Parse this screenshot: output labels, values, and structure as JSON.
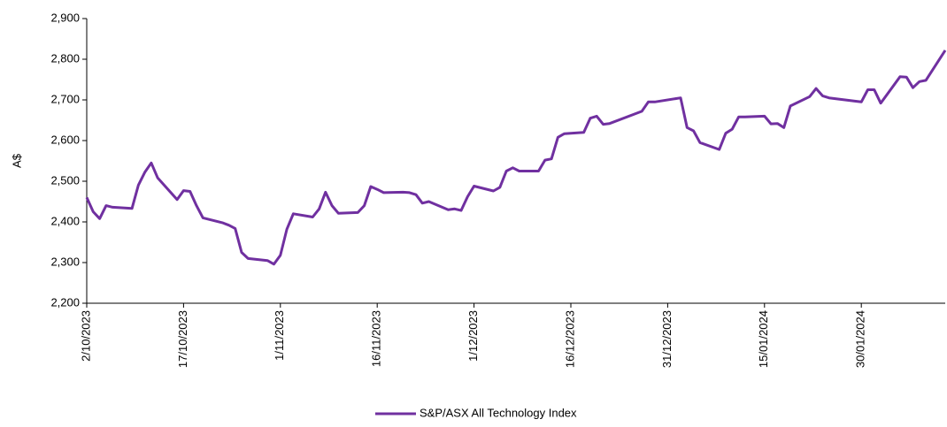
{
  "chart_data": {
    "type": "line",
    "y_axis_label": "A$",
    "x": [
      "2023-10-02",
      "2023-10-03",
      "2023-10-04",
      "2023-10-05",
      "2023-10-06",
      "2023-10-09",
      "2023-10-10",
      "2023-10-11",
      "2023-10-12",
      "2023-10-13",
      "2023-10-16",
      "2023-10-17",
      "2023-10-18",
      "2023-10-19",
      "2023-10-20",
      "2023-10-23",
      "2023-10-24",
      "2023-10-25",
      "2023-10-26",
      "2023-10-27",
      "2023-10-30",
      "2023-10-31",
      "2023-11-01",
      "2023-11-02",
      "2023-11-03",
      "2023-11-06",
      "2023-11-07",
      "2023-11-08",
      "2023-11-09",
      "2023-11-10",
      "2023-11-13",
      "2023-11-14",
      "2023-11-15",
      "2023-11-16",
      "2023-11-17",
      "2023-11-20",
      "2023-11-21",
      "2023-11-22",
      "2023-11-23",
      "2023-11-24",
      "2023-11-27",
      "2023-11-28",
      "2023-11-29",
      "2023-11-30",
      "2023-12-01",
      "2023-12-04",
      "2023-12-05",
      "2023-12-06",
      "2023-12-07",
      "2023-12-08",
      "2023-12-11",
      "2023-12-12",
      "2023-12-13",
      "2023-12-14",
      "2023-12-15",
      "2023-12-18",
      "2023-12-19",
      "2023-12-20",
      "2023-12-21",
      "2023-12-22",
      "2023-12-27",
      "2023-12-28",
      "2023-12-29",
      "2024-01-02",
      "2024-01-03",
      "2024-01-04",
      "2024-01-05",
      "2024-01-08",
      "2024-01-09",
      "2024-01-10",
      "2024-01-11",
      "2024-01-12",
      "2024-01-15",
      "2024-01-16",
      "2024-01-17",
      "2024-01-18",
      "2024-01-19",
      "2024-01-22",
      "2024-01-23",
      "2024-01-24",
      "2024-01-25",
      "2024-01-29",
      "2024-01-30",
      "2024-01-31",
      "2024-02-01",
      "2024-02-02",
      "2024-02-05",
      "2024-02-06",
      "2024-02-07",
      "2024-02-08",
      "2024-02-09",
      "2024-02-12"
    ],
    "series": [
      {
        "name": "S&P/ASX All Technology Index",
        "color": "#7030a0",
        "values": [
          2460,
          2425,
          2408,
          2440,
          2436,
          2433,
          2490,
          2522,
          2545,
          2508,
          2455,
          2477,
          2475,
          2440,
          2410,
          2398,
          2392,
          2384,
          2325,
          2310,
          2305,
          2296,
          2318,
          2382,
          2420,
          2412,
          2432,
          2473,
          2440,
          2421,
          2423,
          2440,
          2487,
          2480,
          2472,
          2473,
          2472,
          2467,
          2446,
          2450,
          2430,
          2432,
          2428,
          2462,
          2488,
          2476,
          2485,
          2525,
          2533,
          2525,
          2525,
          2552,
          2555,
          2608,
          2617,
          2620,
          2655,
          2660,
          2640,
          2642,
          2672,
          2695,
          2695,
          2705,
          2632,
          2624,
          2595,
          2578,
          2618,
          2628,
          2658,
          2658,
          2660,
          2641,
          2642,
          2632,
          2685,
          2708,
          2728,
          2710,
          2705,
          2697,
          2695,
          2725,
          2725,
          2692,
          2757,
          2756,
          2730,
          2745,
          2748,
          2822
        ]
      }
    ],
    "xlim": [
      "2023-10-02",
      "2024-02-12"
    ],
    "xticks": [
      {
        "value": "2023-10-02",
        "label": "2/10/2023"
      },
      {
        "value": "2023-10-17",
        "label": "17/10/2023"
      },
      {
        "value": "2023-11-01",
        "label": "1/11/2023"
      },
      {
        "value": "2023-11-16",
        "label": "16/11/2023"
      },
      {
        "value": "2023-12-01",
        "label": "1/12/2023"
      },
      {
        "value": "2023-12-16",
        "label": "16/12/2023"
      },
      {
        "value": "2023-12-31",
        "label": "31/12/2023"
      },
      {
        "value": "2024-01-15",
        "label": "15/01/2024"
      },
      {
        "value": "2024-01-30",
        "label": "30/01/2024"
      }
    ],
    "ylim": [
      2200,
      2900
    ],
    "yticks": [
      {
        "value": 2200,
        "label": "2,200"
      },
      {
        "value": 2300,
        "label": "2,300"
      },
      {
        "value": 2400,
        "label": "2,400"
      },
      {
        "value": 2500,
        "label": "2,500"
      },
      {
        "value": 2600,
        "label": "2,600"
      },
      {
        "value": 2700,
        "label": "2,700"
      },
      {
        "value": 2800,
        "label": "2,800"
      },
      {
        "value": 2900,
        "label": "2,900"
      }
    ],
    "grid": false,
    "legend": "bottom"
  }
}
